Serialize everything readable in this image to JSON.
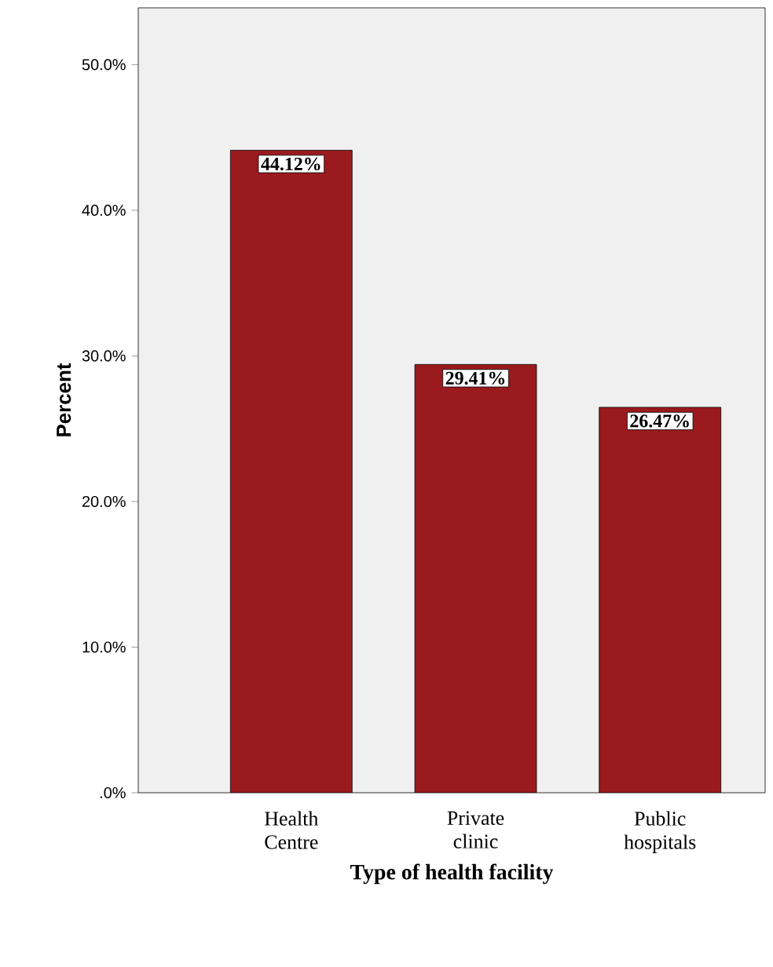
{
  "chart_data": {
    "type": "bar",
    "xlabel": "Type of health facility",
    "ylabel": "Percent",
    "categories": [
      "Health Centre",
      "Private clinic",
      "Public hospitals"
    ],
    "values": [
      44.12,
      29.41,
      26.47
    ],
    "color": "#9b1a1e",
    "value_labels": [
      "44.12%",
      "29.41%",
      "26.47%"
    ],
    "ylim": [
      0,
      53.9
    ],
    "yticks": [
      {
        "value": 0,
        "label": ".0%"
      },
      {
        "value": 10,
        "label": "10.0%"
      },
      {
        "value": 20,
        "label": "20.0%"
      },
      {
        "value": 30,
        "label": "30.0%"
      },
      {
        "value": 40,
        "label": "40.0%"
      },
      {
        "value": 50,
        "label": "50.0%"
      }
    ],
    "grid": false
  }
}
